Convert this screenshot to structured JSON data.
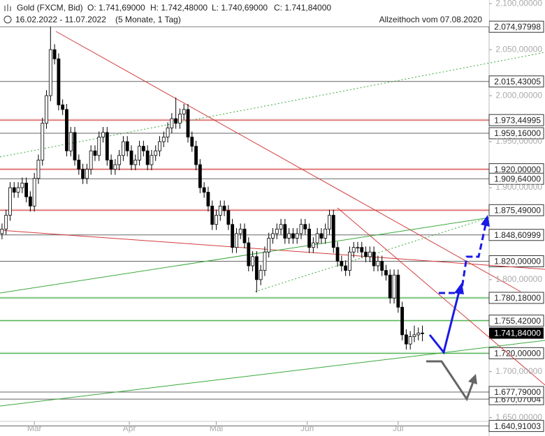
{
  "chart_data": {
    "type": "candlestick",
    "title": "Gold (FXCM, Bid)",
    "ohlc_text": [
      "O: 1.741,69000",
      "H: 1.742,48000",
      "L: 1.740,69000",
      "C: 1.741,84000"
    ],
    "subtitle": "16.02.2022 - 11.07.2022",
    "period": "(5 Monate, 1 Tag)",
    "annotation": "Allzeithoch vom 07.08.2020",
    "up_color": "#ffffff",
    "down_color": "#000000",
    "ylim": [
      1630,
      2104
    ],
    "xlim": [
      -0.5,
      120.5
    ],
    "yticks": [
      {
        "value": 2100,
        "label": "2.100,00000"
      },
      {
        "value": 2050,
        "label": "2.050,00000"
      },
      {
        "value": 2000,
        "label": "2.000,00000"
      },
      {
        "value": 1950,
        "label": "1.950,00000"
      },
      {
        "value": 1900,
        "label": "1.900,00000"
      },
      {
        "value": 1800,
        "label": "1.800,00000"
      },
      {
        "value": 1700,
        "label": "1.700,00000"
      },
      {
        "value": 1650,
        "label": "1.650,00000"
      }
    ],
    "xticks": [
      {
        "value": 8,
        "label": "Mär"
      },
      {
        "value": 31.5,
        "label": "Apr"
      },
      {
        "value": 53,
        "label": "Mai"
      },
      {
        "value": 75.5,
        "label": "Jun"
      },
      {
        "value": 98,
        "label": "Jul"
      }
    ],
    "levels": [
      {
        "value": 2074.97998,
        "label": "2.074,97998",
        "color": "#666666"
      },
      {
        "value": 2015.43005,
        "label": "2.015,43005",
        "color": "#666666"
      },
      {
        "value": 1973.44995,
        "label": "1.973,44995",
        "color": "#d23c3c"
      },
      {
        "value": 1959.16,
        "label": "1.959,16000",
        "color": "#666666"
      },
      {
        "value": 1920,
        "label": "1.920,00000",
        "color": "#d23c3c"
      },
      {
        "value": 1909.64,
        "label": "1.909,64000",
        "color": "#666666"
      },
      {
        "value": 1875.49,
        "label": "1.875,49000",
        "color": "#d23c3c"
      },
      {
        "value": 1848.60999,
        "label": "1.848,60999",
        "color": "#666666"
      },
      {
        "value": 1820,
        "label": "1.820,00000",
        "color": "#666666"
      },
      {
        "value": 1780.18,
        "label": "1.780,18000",
        "color": "#3aa83a"
      },
      {
        "value": 1755.42,
        "label": "1.755,42000",
        "color": "#3aa83a"
      },
      {
        "value": 1720,
        "label": "1.720,00000",
        "color": "#3aa83a"
      },
      {
        "value": 1670.07004,
        "label": "1.670,07004",
        "color": "#666666"
      },
      {
        "value": 1677.79,
        "label": "1.677,79000",
        "color": "#666666"
      },
      {
        "value": 1640.91003,
        "label": "1.640,91003",
        "color": "#666666"
      }
    ],
    "last_price": {
      "value": 1741.84,
      "label": "1.741,84000"
    },
    "candles": [
      [
        1850,
        1861,
        1844,
        1855
      ],
      [
        1855,
        1876,
        1849,
        1870
      ],
      [
        1870,
        1906,
        1864,
        1900
      ],
      [
        1900,
        1906,
        1889,
        1895
      ],
      [
        1895,
        1906,
        1889,
        1900
      ],
      [
        1900,
        1911,
        1894,
        1905
      ],
      [
        1905,
        1911,
        1884,
        1890
      ],
      [
        1890,
        1896,
        1874,
        1880
      ],
      [
        1880,
        1916,
        1874,
        1910
      ],
      [
        1910,
        1936,
        1904,
        1930
      ],
      [
        1930,
        1976,
        1924,
        1970
      ],
      [
        1970,
        2006,
        1964,
        2000
      ],
      [
        2000,
        2074.98,
        1994,
        2050
      ],
      [
        2050,
        2056,
        2034,
        2040
      ],
      [
        2040,
        2046,
        1984,
        1990
      ],
      [
        1990,
        1996,
        1979,
        1985
      ],
      [
        1985,
        1991,
        1934,
        1940
      ],
      [
        1940,
        1966,
        1934,
        1960
      ],
      [
        1960,
        1966,
        1924,
        1930
      ],
      [
        1930,
        1936,
        1914,
        1920
      ],
      [
        1920,
        1926,
        1904,
        1910
      ],
      [
        1910,
        1926,
        1904,
        1920
      ],
      [
        1920,
        1946,
        1914,
        1940
      ],
      [
        1940,
        1946,
        1929,
        1935
      ],
      [
        1935,
        1961,
        1929,
        1955
      ],
      [
        1955,
        1966,
        1949,
        1960
      ],
      [
        1960,
        1966,
        1924,
        1930
      ],
      [
        1930,
        1936,
        1914,
        1920
      ],
      [
        1920,
        1931,
        1914,
        1925
      ],
      [
        1925,
        1941,
        1919,
        1935
      ],
      [
        1935,
        1956,
        1929,
        1950
      ],
      [
        1950,
        1956,
        1934,
        1940
      ],
      [
        1940,
        1946,
        1919,
        1925
      ],
      [
        1925,
        1936,
        1919,
        1930
      ],
      [
        1930,
        1951,
        1924,
        1945
      ],
      [
        1945,
        1951,
        1934,
        1940
      ],
      [
        1940,
        1946,
        1919,
        1925
      ],
      [
        1925,
        1941,
        1919,
        1935
      ],
      [
        1935,
        1946,
        1929,
        1940
      ],
      [
        1940,
        1956,
        1934,
        1950
      ],
      [
        1950,
        1961,
        1944,
        1955
      ],
      [
        1955,
        1971,
        1949,
        1965
      ],
      [
        1965,
        1981,
        1959,
        1975
      ],
      [
        1975,
        1998,
        1964,
        1970
      ],
      [
        1970,
        1986,
        1964,
        1980
      ],
      [
        1980,
        1991,
        1974,
        1985
      ],
      [
        1985,
        1991,
        1949,
        1955
      ],
      [
        1955,
        1961,
        1939,
        1945
      ],
      [
        1945,
        1951,
        1919,
        1925
      ],
      [
        1925,
        1931,
        1894,
        1900
      ],
      [
        1900,
        1906,
        1889,
        1895
      ],
      [
        1895,
        1901,
        1874,
        1880
      ],
      [
        1880,
        1886,
        1854,
        1860
      ],
      [
        1860,
        1876,
        1854,
        1870
      ],
      [
        1870,
        1886,
        1864,
        1880
      ],
      [
        1880,
        1886,
        1869,
        1875
      ],
      [
        1875,
        1881,
        1854,
        1860
      ],
      [
        1860,
        1866,
        1829,
        1835
      ],
      [
        1835,
        1856,
        1829,
        1850
      ],
      [
        1850,
        1861,
        1844,
        1855
      ],
      [
        1855,
        1861,
        1834,
        1840
      ],
      [
        1840,
        1846,
        1809,
        1815
      ],
      [
        1815,
        1831,
        1809,
        1825
      ],
      [
        1825,
        1831,
        1786,
        1800
      ],
      [
        1800,
        1816,
        1794,
        1810
      ],
      [
        1810,
        1836,
        1804,
        1830
      ],
      [
        1830,
        1851,
        1824,
        1845
      ],
      [
        1845,
        1856,
        1839,
        1850
      ],
      [
        1850,
        1861,
        1844,
        1855
      ],
      [
        1855,
        1866,
        1849,
        1860
      ],
      [
        1860,
        1866,
        1839,
        1845
      ],
      [
        1845,
        1856,
        1839,
        1850
      ],
      [
        1850,
        1856,
        1839,
        1845
      ],
      [
        1845,
        1856,
        1839,
        1850
      ],
      [
        1850,
        1866,
        1844,
        1860
      ],
      [
        1860,
        1866,
        1849,
        1855
      ],
      [
        1855,
        1861,
        1829,
        1835
      ],
      [
        1835,
        1846,
        1829,
        1840
      ],
      [
        1840,
        1856,
        1834,
        1850
      ],
      [
        1850,
        1856,
        1839,
        1845
      ],
      [
        1845,
        1861,
        1839,
        1855
      ],
      [
        1855,
        1876,
        1849,
        1870
      ],
      [
        1870,
        1876,
        1829,
        1835
      ],
      [
        1835,
        1841,
        1814,
        1820
      ],
      [
        1820,
        1826,
        1809,
        1815
      ],
      [
        1815,
        1821,
        1804,
        1810
      ],
      [
        1810,
        1836,
        1804,
        1830
      ],
      [
        1830,
        1841,
        1824,
        1835
      ],
      [
        1835,
        1841,
        1829,
        1835
      ],
      [
        1835,
        1841,
        1824,
        1830
      ],
      [
        1830,
        1836,
        1819,
        1825
      ],
      [
        1825,
        1836,
        1819,
        1830
      ],
      [
        1830,
        1836,
        1809,
        1815
      ],
      [
        1815,
        1826,
        1809,
        1820
      ],
      [
        1820,
        1826,
        1804,
        1810
      ],
      [
        1810,
        1816,
        1799,
        1805
      ],
      [
        1805,
        1811,
        1774,
        1780
      ],
      [
        1780,
        1811,
        1774,
        1805
      ],
      [
        1805,
        1811,
        1764,
        1770
      ],
      [
        1770,
        1776,
        1734,
        1740
      ],
      [
        1740,
        1746,
        1724,
        1730
      ],
      [
        1730,
        1744,
        1724,
        1738
      ],
      [
        1738,
        1750,
        1732,
        1740
      ],
      [
        1740,
        1748,
        1734,
        1742
      ],
      [
        1742,
        1750,
        1733,
        1741.84
      ]
    ]
  }
}
